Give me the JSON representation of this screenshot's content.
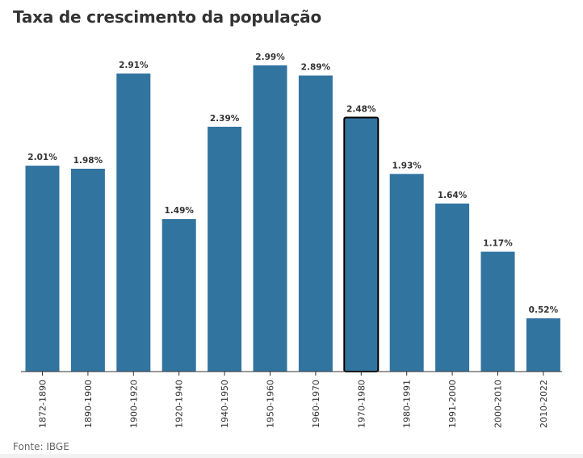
{
  "chart_data": {
    "type": "bar",
    "title": "Taxa de crescimento da população",
    "source": "Fonte: IBGE",
    "categories": [
      "1872-1890",
      "1890-1900",
      "1900-1920",
      "1920-1940",
      "1940-1950",
      "1950-1960",
      "1960-1970",
      "1970-1980",
      "1980-1991",
      "1991-2000",
      "2000-2010",
      "2010-2022"
    ],
    "values": [
      2.01,
      1.98,
      2.91,
      1.49,
      2.39,
      2.99,
      2.89,
      2.48,
      1.93,
      1.64,
      1.17,
      0.52
    ],
    "value_labels": [
      "2.01%",
      "1.98%",
      "2.91%",
      "1.49%",
      "2.39%",
      "2.99%",
      "2.89%",
      "2.48%",
      "1.93%",
      "1.64%",
      "1.17%",
      "0.52%"
    ],
    "highlighted_category": "1970-1980",
    "bar_color": "#3274a0",
    "highlight_border_color": "#000000",
    "ylim": [
      0,
      3
    ],
    "grid": false,
    "xlabel": "",
    "ylabel": ""
  }
}
